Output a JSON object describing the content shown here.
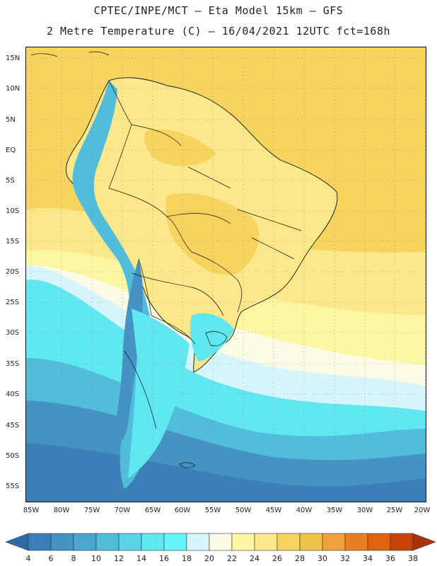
{
  "header": {
    "line1": "CPTEC/INPE/MCT –  Eta Model 15km – GFS",
    "line2": "2 Metre Temperature (C) – 16/04/2021 12UTC fct=168h"
  },
  "axes": {
    "lat_labels": [
      "15N",
      "10N",
      "5N",
      "EQ",
      "5S",
      "10S",
      "15S",
      "20S",
      "25S",
      "30S",
      "35S",
      "40S",
      "45S",
      "50S",
      "55S"
    ],
    "lon_labels": [
      "85W",
      "80W",
      "75W",
      "70W",
      "65W",
      "60W",
      "55W",
      "50W",
      "45W",
      "40W",
      "35W",
      "30W",
      "25W",
      "20W"
    ],
    "lat_range": [
      17,
      -57
    ],
    "lon_range": [
      -86,
      -20
    ],
    "grid": "dotted"
  },
  "colorbar": {
    "labels": [
      "4",
      "6",
      "8",
      "10",
      "12",
      "14",
      "16",
      "18",
      "20",
      "22",
      "24",
      "26",
      "28",
      "30",
      "32",
      "34",
      "36",
      "38"
    ],
    "colors": [
      "#2f6aa6",
      "#3a7fb8",
      "#4592c4",
      "#4aa7cf",
      "#52bcdb",
      "#5ad3e6",
      "#5fe8f1",
      "#66f6f9",
      "#d6f6fb",
      "#fdfbe6",
      "#fdf7a4",
      "#fbe88a",
      "#f6d45f",
      "#efc24a",
      "#f0a23c",
      "#ea7e24",
      "#e06311",
      "#c84309",
      "#aa3306"
    ],
    "end_left_color": "#2f6aa6",
    "end_right_color": "#aa3306"
  },
  "map": {
    "ocean_colors": {
      "tropical_ocean": "#f6d45f",
      "warm_ocean": "#fbe88a",
      "mild_ocean": "#fdf7a4",
      "pale": "#fdfbe6",
      "cool": "#d6f6fb",
      "cold1": "#5fe8f1",
      "cold2": "#52bcdb",
      "cold3": "#4592c4",
      "cold4": "#3a7fb8"
    }
  }
}
